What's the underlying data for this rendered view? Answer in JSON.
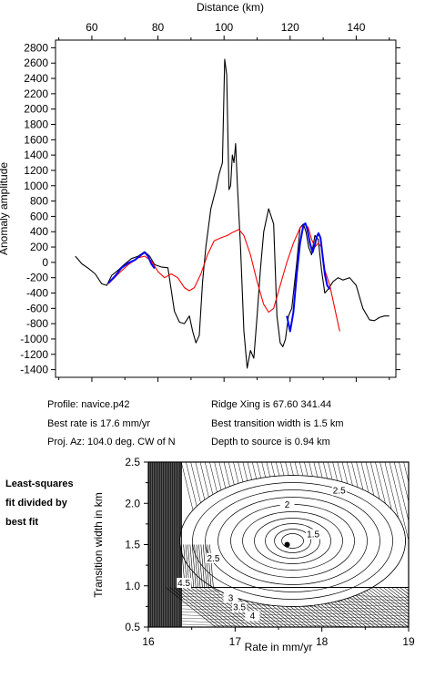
{
  "info": {
    "profile": "Profile: navice.p42",
    "rate": "Best rate is 17.6 mm/yr",
    "az": "Proj. Az: 104.0 deg. CW of N",
    "ridge": "Ridge Xing is 67.60 341.44",
    "width": "Best transition width is 1.5 km",
    "depth": "Depth to source is   0.94 km"
  },
  "note": [
    "Least-squares",
    "fit divided by",
    "best fit"
  ],
  "chart_data": [
    {
      "type": "line",
      "xlabel": "Distance (km)",
      "ylabel": "Anomaly amplitude",
      "xlim": [
        49,
        152
      ],
      "ylim": [
        -1500,
        2900
      ],
      "xticks": [
        60,
        80,
        100,
        120,
        140
      ],
      "yticks": [
        -1400,
        -1200,
        -1000,
        -800,
        -600,
        -400,
        -200,
        0,
        200,
        400,
        600,
        800,
        1000,
        1200,
        1400,
        1600,
        1800,
        2000,
        2200,
        2400,
        2600,
        2800
      ],
      "series": [
        {
          "color": "#000000",
          "x": [
            55,
            57,
            59,
            61,
            63,
            64.5,
            66,
            68,
            70,
            72,
            74,
            76,
            77.5,
            79,
            81,
            83,
            85,
            86.5,
            88,
            89.5,
            90.5,
            91.5,
            92.5,
            93.5,
            94.5,
            96,
            97.5,
            98.5,
            99.5,
            100.2,
            100.8,
            101.5,
            102,
            102.5,
            103,
            103.5,
            104,
            105,
            106,
            107,
            108,
            109,
            110,
            111,
            112,
            113.5,
            115,
            116,
            117,
            117.8,
            118.6,
            119.5,
            120.5,
            122,
            123,
            124,
            124.8,
            125.6,
            126.5,
            127.5,
            128.5,
            129.5,
            130.5,
            131.5,
            133,
            134.5,
            136,
            138,
            140,
            142,
            144,
            145.5,
            147,
            148.5,
            150
          ],
          "y": [
            80,
            -20,
            -80,
            -150,
            -280,
            -300,
            -170,
            -100,
            -20,
            50,
            80,
            140,
            80,
            -30,
            -60,
            -70,
            -640,
            -780,
            -800,
            -700,
            -900,
            -1050,
            -950,
            -250,
            200,
            700,
            950,
            1150,
            1300,
            2650,
            2450,
            950,
            1000,
            1400,
            1300,
            1550,
            1050,
            200,
            -900,
            -1380,
            -1150,
            -1250,
            -700,
            -100,
            400,
            700,
            500,
            -700,
            -1050,
            -1100,
            -1000,
            -700,
            -600,
            0,
            450,
            500,
            400,
            200,
            100,
            350,
            300,
            -100,
            -400,
            -350,
            -250,
            -200,
            -230,
            -200,
            -300,
            -600,
            -750,
            -760,
            -720,
            -700,
            -700
          ]
        },
        {
          "color": "#ff0000",
          "x": [
            65,
            68,
            71,
            74,
            76,
            78,
            80,
            82,
            84,
            86,
            88,
            89.5,
            91,
            93,
            95,
            97,
            99,
            101,
            103,
            104.5,
            106,
            108,
            110,
            112,
            113.5,
            115,
            117,
            119,
            121,
            123,
            124.5,
            125.5,
            126.5,
            127.5,
            128.5,
            129.5,
            130.5,
            132,
            133.5,
            135
          ],
          "y": [
            -280,
            -150,
            -30,
            60,
            80,
            20,
            -120,
            -200,
            -150,
            -200,
            -330,
            -370,
            -330,
            -150,
            100,
            280,
            320,
            350,
            400,
            430,
            350,
            100,
            -250,
            -550,
            -650,
            -600,
            -300,
            0,
            250,
            450,
            500,
            450,
            300,
            200,
            250,
            200,
            -100,
            -300,
            -600,
            -900
          ]
        },
        {
          "color": "#0000ff",
          "x": [
            65,
            67,
            69,
            71,
            73,
            75,
            76,
            77,
            78,
            79
          ],
          "y": [
            -270,
            -180,
            -70,
            -10,
            30,
            100,
            130,
            80,
            -20,
            -80
          ]
        },
        {
          "color": "#0000ff",
          "x": [
            119,
            120,
            121,
            122,
            123,
            124,
            124.6,
            125.2,
            126,
            126.8,
            127.5,
            128,
            128.6,
            129.2,
            129.8,
            130.5,
            131.2,
            132
          ],
          "y": [
            -700,
            -900,
            -650,
            -150,
            250,
            480,
            510,
            430,
            250,
            130,
            230,
            330,
            380,
            320,
            100,
            -150,
            -300,
            -350
          ]
        }
      ]
    },
    {
      "type": "contour",
      "xlabel": "Rate in mm/yr",
      "ylabel": "Transition width in km",
      "xlim": [
        16,
        19
      ],
      "ylim": [
        0.5,
        2.5
      ],
      "xticks": [
        16,
        17,
        18,
        19
      ],
      "yticks": [
        0.5,
        1.0,
        1.5,
        2.0,
        2.5
      ],
      "best_point": {
        "x": 17.6,
        "y": 1.5
      },
      "contour_labels": [
        {
          "text": "1.5",
          "x": 17.9,
          "y": 1.62
        },
        {
          "text": "2",
          "x": 17.6,
          "y": 1.98
        },
        {
          "text": "2.5",
          "x": 18.2,
          "y": 2.15
        },
        {
          "text": "2.5",
          "x": 16.75,
          "y": 1.33
        },
        {
          "text": "4.5",
          "x": 16.41,
          "y": 1.03
        },
        {
          "text": "3",
          "x": 16.95,
          "y": 0.85
        },
        {
          "text": "3.5",
          "x": 17.05,
          "y": 0.74
        },
        {
          "text": "4",
          "x": 17.2,
          "y": 0.63
        }
      ]
    }
  ]
}
